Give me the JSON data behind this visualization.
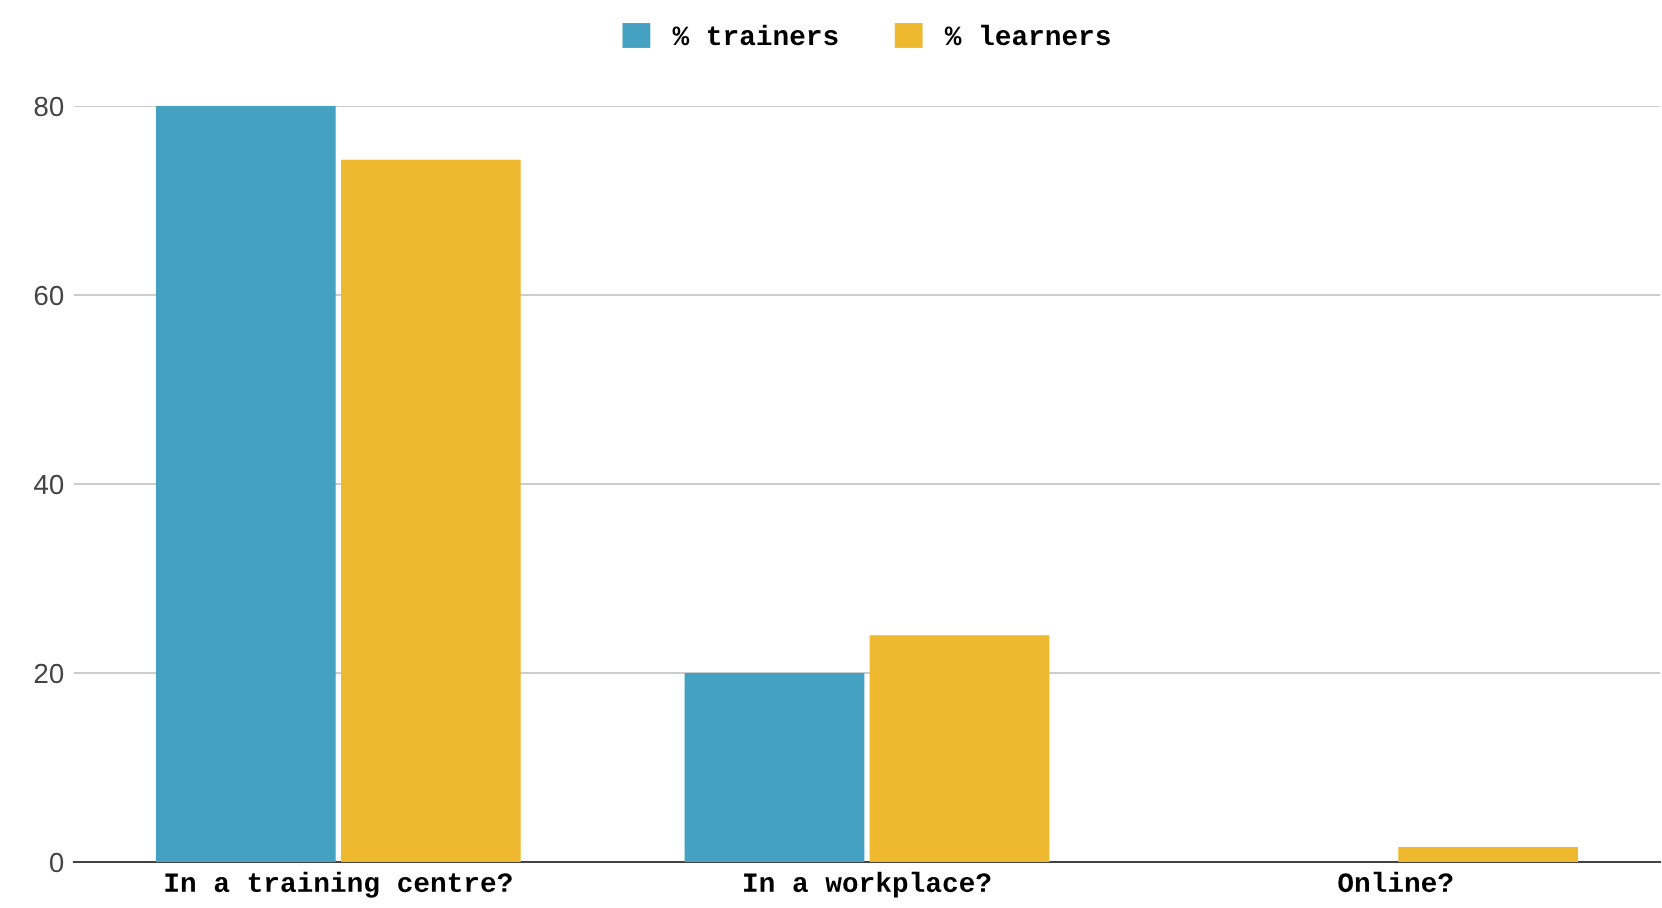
{
  "chart_data": {
    "type": "bar",
    "categories": [
      "In a training centre?",
      "In a workplace?",
      "Online?"
    ],
    "series": [
      {
        "name": "% trainers",
        "color": "#44a1c1",
        "values": [
          80,
          20,
          0
        ]
      },
      {
        "name": "% learners",
        "color": "#eeb92e",
        "values": [
          74.3,
          24,
          1.6
        ]
      }
    ],
    "ylim": [
      0,
      80
    ],
    "yticks": [
      0,
      20,
      40,
      60,
      80
    ],
    "grid": "y",
    "legend": "top"
  }
}
